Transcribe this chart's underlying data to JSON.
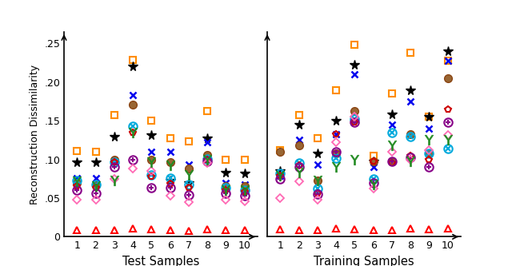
{
  "test_samples": [
    1,
    2,
    3,
    4,
    5,
    6,
    7,
    8,
    9,
    10
  ],
  "train_samples": [
    1,
    2,
    3,
    4,
    5,
    6,
    7,
    8,
    9,
    10
  ],
  "test_series": {
    "orange_sq": [
      0.111,
      0.11,
      0.157,
      0.229,
      0.15,
      0.128,
      0.123,
      0.163,
      0.1,
      0.1
    ],
    "black_star": [
      0.097,
      0.097,
      0.13,
      0.221,
      0.132,
      0.073,
      0.07,
      0.128,
      0.083,
      0.082
    ],
    "blue_x": [
      0.076,
      0.076,
      0.098,
      0.183,
      0.11,
      0.11,
      0.093,
      0.122,
      0.07,
      0.068
    ],
    "brown_circ": [
      0.07,
      0.067,
      0.1,
      0.171,
      0.1,
      0.097,
      0.088,
      0.106,
      0.066,
      0.065
    ],
    "cyan_otimes": [
      0.073,
      0.068,
      0.097,
      0.143,
      0.08,
      0.076,
      0.068,
      0.101,
      0.063,
      0.06
    ],
    "red_pent": [
      0.065,
      0.063,
      0.097,
      0.135,
      0.078,
      0.069,
      0.063,
      0.1,
      0.06,
      0.058
    ],
    "purple_oplus": [
      0.06,
      0.056,
      0.09,
      0.1,
      0.063,
      0.063,
      0.054,
      0.098,
      0.056,
      0.053
    ],
    "pink_diam": [
      0.048,
      0.048,
      0.075,
      0.088,
      0.085,
      0.053,
      0.045,
      0.095,
      0.048,
      0.046
    ],
    "green_y": [
      0.072,
      0.065,
      0.073,
      0.135,
      0.097,
      0.092,
      0.08,
      0.1,
      0.06,
      0.06
    ],
    "red_tri": [
      0.009,
      0.009,
      0.009,
      0.011,
      0.01,
      0.009,
      0.008,
      0.01,
      0.009,
      0.009
    ]
  },
  "train_series": {
    "orange_sq": [
      0.112,
      0.157,
      0.128,
      0.19,
      0.248,
      0.105,
      0.185,
      0.238,
      0.155,
      0.228
    ],
    "black_star": [
      0.085,
      0.145,
      0.108,
      0.15,
      0.223,
      0.098,
      0.158,
      0.19,
      0.155,
      0.24
    ],
    "blue_x": [
      0.079,
      0.125,
      0.093,
      0.133,
      0.21,
      0.09,
      0.145,
      0.175,
      0.14,
      0.228
    ],
    "brown_circ": [
      0.11,
      0.118,
      0.073,
      0.108,
      0.163,
      0.098,
      0.098,
      0.133,
      0.108,
      0.205
    ],
    "cyan_otimes": [
      0.082,
      0.095,
      0.062,
      0.102,
      0.152,
      0.075,
      0.135,
      0.13,
      0.108,
      0.114
    ],
    "red_pent": [
      0.079,
      0.092,
      0.056,
      0.133,
      0.148,
      0.098,
      0.095,
      0.105,
      0.1,
      0.165
    ],
    "purple_oplus": [
      0.075,
      0.09,
      0.055,
      0.11,
      0.148,
      0.07,
      0.098,
      0.103,
      0.09,
      0.148
    ],
    "pink_diam": [
      0.05,
      0.072,
      0.048,
      0.122,
      0.155,
      0.062,
      0.11,
      0.1,
      0.112,
      0.132
    ],
    "green_y": [
      0.079,
      0.083,
      0.073,
      0.09,
      0.1,
      0.068,
      0.118,
      0.098,
      0.125,
      0.125
    ],
    "red_tri": [
      0.01,
      0.009,
      0.009,
      0.011,
      0.01,
      0.009,
      0.009,
      0.011,
      0.01,
      0.011
    ]
  },
  "ylim": [
    0,
    0.265
  ],
  "yticks": [
    0,
    0.05,
    0.1,
    0.15,
    0.2,
    0.25
  ],
  "yticklabels": [
    "0",
    ".05",
    ".10",
    ".15",
    ".20",
    ".25"
  ],
  "ylabel": "Reconstruction Dissimilarity",
  "xlabel_left": "Test Samples",
  "xlabel_right": "Training Samples"
}
